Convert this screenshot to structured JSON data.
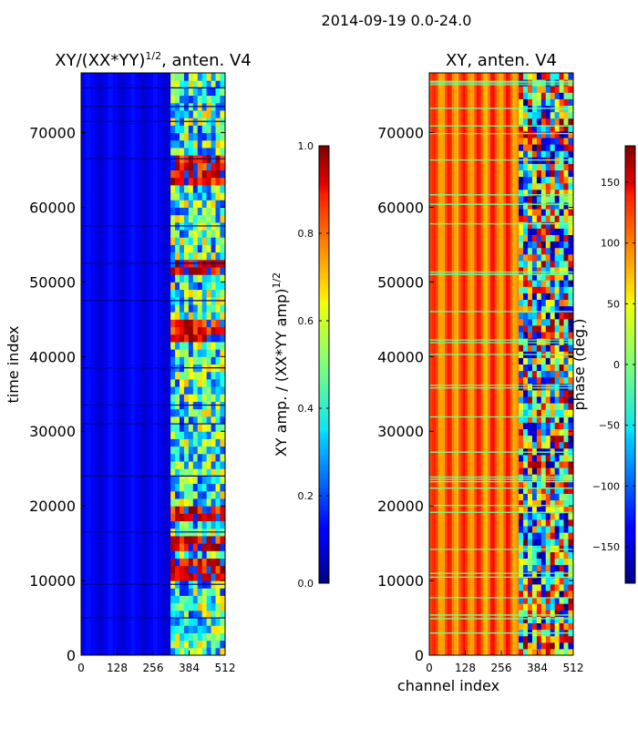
{
  "suptitle": "2014-09-19 0.0-24.0",
  "chart_data": [
    {
      "type": "heatmap",
      "title_base": "XY/(XX*YY)",
      "title_sup": "1/2",
      "title_tail": ", anten. V4",
      "xlabel": "",
      "ylabel": "time index",
      "x_ticks": [
        "0",
        "128",
        "256",
        "384",
        "512"
      ],
      "xlim": [
        0,
        512
      ],
      "y_ticks": [
        "0",
        "10000",
        "20000",
        "30000",
        "40000",
        "50000",
        "60000",
        "70000"
      ],
      "ylim": [
        0,
        78000
      ],
      "colormap": "jet",
      "colorbar": {
        "label_base": "XY amp. / (XX*YY amp)",
        "label_sup": "1/2",
        "range": [
          0.0,
          1.0
        ],
        "ticks": [
          "0.0",
          "0.2",
          "0.4",
          "0.6",
          "0.8",
          "1.0"
        ]
      },
      "description_values": {
        "channels_0_320": "low (~0.05-0.15)",
        "channels_320_512": "mixed blocks (~0.3-0.9), peaks near 11000, 18500, 51500, 63500"
      }
    },
    {
      "type": "heatmap",
      "title_base": "XY, anten. V4",
      "xlabel": "channel index",
      "ylabel": "",
      "x_ticks": [
        "0",
        "128",
        "256",
        "384",
        "512"
      ],
      "xlim": [
        0,
        512
      ],
      "y_ticks": [
        "0",
        "10000",
        "20000",
        "30000",
        "40000",
        "50000",
        "60000",
        "70000"
      ],
      "ylim": [
        0,
        78000
      ],
      "colormap": "jet",
      "colorbar": {
        "label": "phase (deg.)",
        "range": [
          -180,
          180
        ],
        "ticks": [
          "−150",
          "−100",
          "−50",
          "0",
          "50",
          "100",
          "150"
        ]
      },
      "description_values": {
        "channels_0_320": "mostly 90-160 deg (orange/red bands)",
        "channels_320_512": "wrapping phase from -180 to 180"
      }
    }
  ]
}
